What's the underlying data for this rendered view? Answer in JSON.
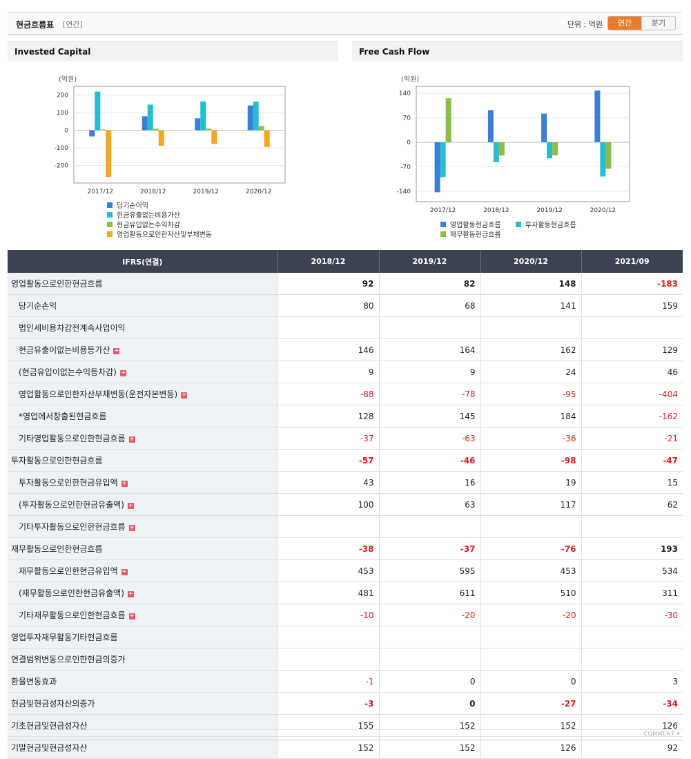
{
  "header": {
    "title": "현금흐름표",
    "period": "[연간]",
    "unit_label": "단위 : 억원",
    "toggle": [
      "연간",
      "분기"
    ]
  },
  "colors": {
    "accent": "#e87c2f",
    "blue": "#3a7fd5",
    "teal": "#27bccf",
    "green": "#8cbd45",
    "orange": "#f5a623",
    "negative": "#d42020"
  },
  "chart_data": [
    {
      "type": "bar",
      "title": "Invested Capital",
      "ylabel": "(억원)",
      "categories": [
        "2017/12",
        "2018/12",
        "2019/12",
        "2020/12"
      ],
      "ylim": [
        -300,
        250
      ],
      "yticks": [
        200,
        100,
        0,
        -100,
        -200
      ],
      "grid": true,
      "legend": "bottom",
      "series": [
        {
          "name": "당기순이익",
          "color": "#3a7fd5",
          "values": [
            -35,
            80,
            68,
            141
          ]
        },
        {
          "name": "현금유출없는비용가산",
          "color": "#27bccf",
          "values": [
            220,
            146,
            164,
            162
          ]
        },
        {
          "name": "현금유입없는수익차감",
          "color": "#8cbd45",
          "values": [
            5,
            9,
            9,
            24
          ]
        },
        {
          "name": "영업활동으로인한자산및부채변동",
          "color": "#f5a623",
          "values": [
            -265,
            -88,
            -78,
            -95
          ]
        }
      ]
    },
    {
      "type": "bar",
      "title": "Free Cash Flow",
      "ylabel": "(억원)",
      "categories": [
        "2017/12",
        "2018/12",
        "2019/12",
        "2020/12"
      ],
      "ylim": [
        -170,
        160
      ],
      "yticks": [
        140,
        70,
        0,
        -70,
        -140
      ],
      "grid": true,
      "legend": "bottom",
      "series": [
        {
          "name": "영업활동현금흐름",
          "color": "#3a7fd5",
          "values": [
            -143,
            92,
            82,
            148
          ]
        },
        {
          "name": "투자활동현금흐름",
          "color": "#27bccf",
          "values": [
            -100,
            -57,
            -46,
            -98
          ]
        },
        {
          "name": "재무활동현금흐름",
          "color": "#8cbd45",
          "values": [
            126,
            -38,
            -37,
            -76
          ]
        }
      ]
    }
  ],
  "table": {
    "corner": "IFRS(연결)",
    "columns": [
      "2018/12",
      "2019/12",
      "2020/12",
      "2021/09"
    ],
    "rows": [
      {
        "label": "영업활동으로인한현금흐름",
        "level": 0,
        "bold": true,
        "expand": false,
        "values": [
          "92",
          "82",
          "148",
          "-183"
        ]
      },
      {
        "label": "당기순손익",
        "level": 1,
        "bold": false,
        "expand": false,
        "values": [
          "80",
          "68",
          "141",
          "159"
        ]
      },
      {
        "label": "법인세비용차감전계속사업이익",
        "level": 1,
        "bold": false,
        "expand": false,
        "values": [
          "",
          "",
          "",
          ""
        ]
      },
      {
        "label": "현금유출이없는비용등가산",
        "level": 1,
        "bold": false,
        "expand": true,
        "values": [
          "146",
          "164",
          "162",
          "129"
        ]
      },
      {
        "label": "(현금유입이없는수익등차감)",
        "level": 1,
        "bold": false,
        "expand": true,
        "values": [
          "9",
          "9",
          "24",
          "46"
        ]
      },
      {
        "label": "영업활동으로인한자산부채변동(운전자본변동)",
        "level": 1,
        "bold": false,
        "expand": true,
        "values": [
          "-88",
          "-78",
          "-95",
          "-404"
        ]
      },
      {
        "label": "*영업에서창출된현금흐름",
        "level": 1,
        "bold": false,
        "expand": false,
        "values": [
          "128",
          "145",
          "184",
          "-162"
        ]
      },
      {
        "label": "기타영업활동으로인한현금흐름",
        "level": 1,
        "bold": false,
        "expand": true,
        "values": [
          "-37",
          "-63",
          "-36",
          "-21"
        ]
      },
      {
        "label": "투자활동으로인한현금흐름",
        "level": 0,
        "bold": true,
        "expand": false,
        "values": [
          "-57",
          "-46",
          "-98",
          "-47"
        ]
      },
      {
        "label": "투자활동으로인한현금유입액",
        "level": 1,
        "bold": false,
        "expand": true,
        "values": [
          "43",
          "16",
          "19",
          "15"
        ]
      },
      {
        "label": "(투자활동으로인한현금유출액)",
        "level": 1,
        "bold": false,
        "expand": true,
        "values": [
          "100",
          "63",
          "117",
          "62"
        ]
      },
      {
        "label": "기타투자활동으로인한현금흐름",
        "level": 1,
        "bold": false,
        "expand": true,
        "values": [
          "",
          "",
          "",
          ""
        ]
      },
      {
        "label": "재무활동으로인한현금흐름",
        "level": 0,
        "bold": true,
        "expand": false,
        "values": [
          "-38",
          "-37",
          "-76",
          "193"
        ]
      },
      {
        "label": "재무활동으로인한현금유입액",
        "level": 1,
        "bold": false,
        "expand": true,
        "values": [
          "453",
          "595",
          "453",
          "534"
        ]
      },
      {
        "label": "(재무활동으로인한현금유출액)",
        "level": 1,
        "bold": false,
        "expand": true,
        "values": [
          "481",
          "611",
          "510",
          "311"
        ]
      },
      {
        "label": "기타재무활동으로인한현금흐름",
        "level": 1,
        "bold": false,
        "expand": true,
        "values": [
          "-10",
          "-20",
          "-20",
          "-30"
        ]
      },
      {
        "label": "영업투자재무활동기타현금흐름",
        "level": 0,
        "bold": false,
        "expand": false,
        "values": [
          "",
          "",
          "",
          ""
        ]
      },
      {
        "label": "연결범위변동으로인한현금의증가",
        "level": 0,
        "bold": false,
        "expand": false,
        "values": [
          "",
          "",
          "",
          ""
        ]
      },
      {
        "label": "환율변동효과",
        "level": 0,
        "bold": false,
        "expand": false,
        "values": [
          "-1",
          "0",
          "0",
          "3"
        ]
      },
      {
        "label": "현금및현금성자산의증가",
        "level": 0,
        "bold": true,
        "expand": false,
        "values": [
          "-3",
          "0",
          "-27",
          "-34"
        ]
      },
      {
        "label": "기초현금및현금성자산",
        "level": 0,
        "bold": false,
        "expand": false,
        "values": [
          "155",
          "152",
          "152",
          "126"
        ]
      },
      {
        "label": "기말현금및현금성자산",
        "level": 0,
        "bold": false,
        "expand": false,
        "values": [
          "152",
          "152",
          "126",
          "92"
        ]
      }
    ]
  },
  "footer": {
    "comment": "COMMENT"
  }
}
